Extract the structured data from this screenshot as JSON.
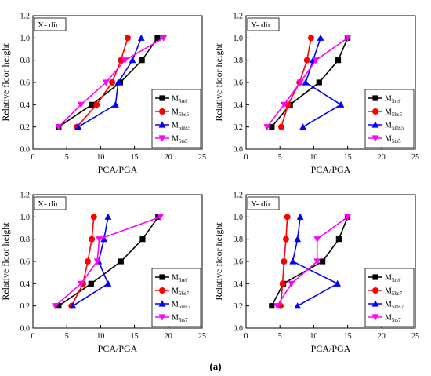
{
  "caption": "(a)",
  "chart_data": [
    {
      "type": "line",
      "direction_label": "X- dir",
      "xlabel": "PCA/PGA",
      "ylabel": "Relative floor height",
      "xlim": [
        0,
        25
      ],
      "ylim": [
        0,
        1.2
      ],
      "xticks": [
        "0",
        "5",
        "10",
        "15",
        "20",
        "25"
      ],
      "yticks": [
        "0.0",
        "0.2",
        "0.4",
        "0.6",
        "0.8",
        "1.0",
        "1.2"
      ],
      "legend_position": "bottom-right",
      "y": [
        0.2,
        0.4,
        0.6,
        0.8,
        1.0
      ],
      "series": [
        {
          "name": "M",
          "sub": "5ref",
          "color": "#000000",
          "marker": "square",
          "x": [
            3.8,
            8.7,
            12.9,
            16.1,
            18.4
          ]
        },
        {
          "name": "M",
          "sub": "5bs5",
          "color": "#ff0000",
          "marker": "circle",
          "x": [
            6.5,
            9.4,
            11.7,
            13.0,
            14.0
          ]
        },
        {
          "name": "M",
          "sub": "5ms5",
          "color": "#0000ff",
          "marker": "triangle-up",
          "x": [
            6.7,
            12.2,
            12.6,
            14.7,
            16.0
          ]
        },
        {
          "name": "M",
          "sub": "5ts5",
          "color": "#ff00ff",
          "marker": "triangle-down",
          "x": [
            3.8,
            7.1,
            10.8,
            13.6,
            19.3
          ]
        }
      ]
    },
    {
      "type": "line",
      "direction_label": "Y- dir",
      "xlabel": "PCA/PGA",
      "ylabel": "Relative floor height",
      "xlim": [
        0,
        25
      ],
      "ylim": [
        0,
        1.2
      ],
      "xticks": [
        "0",
        "5",
        "10",
        "15",
        "20",
        "25"
      ],
      "yticks": [
        "0.0",
        "0.2",
        "0.4",
        "0.6",
        "0.8",
        "1.0",
        "1.2"
      ],
      "legend_position": "bottom-right",
      "y": [
        0.2,
        0.4,
        0.6,
        0.8,
        1.0
      ],
      "series": [
        {
          "name": "M",
          "sub": "5ref",
          "color": "#000000",
          "marker": "square",
          "x": [
            3.8,
            6.5,
            10.8,
            13.6,
            15.0
          ]
        },
        {
          "name": "M",
          "sub": "5bs5",
          "color": "#ff0000",
          "marker": "circle",
          "x": [
            5.2,
            6.2,
            7.9,
            9.0,
            9.6
          ]
        },
        {
          "name": "M",
          "sub": "5ms5",
          "color": "#0000ff",
          "marker": "triangle-up",
          "x": [
            8.4,
            14.0,
            8.8,
            9.9,
            11.0
          ]
        },
        {
          "name": "M",
          "sub": "5ts5",
          "color": "#ff00ff",
          "marker": "triangle-down",
          "x": [
            3.1,
            5.6,
            8.0,
            10.3,
            15.0
          ]
        }
      ]
    },
    {
      "type": "line",
      "direction_label": "X- dir",
      "xlabel": "PCA/PGA",
      "ylabel": "Relative floor height",
      "xlim": [
        0,
        25
      ],
      "ylim": [
        0,
        1.2
      ],
      "xticks": [
        "0",
        "5",
        "10",
        "15",
        "20",
        "25"
      ],
      "yticks": [
        "0.0",
        "0.2",
        "0.4",
        "0.6",
        "0.8",
        "1.0",
        "1.2"
      ],
      "legend_position": "bottom-right",
      "y": [
        0.2,
        0.4,
        0.6,
        0.8,
        1.0
      ],
      "series": [
        {
          "name": "M",
          "sub": "5ref",
          "color": "#000000",
          "marker": "square",
          "x": [
            3.8,
            8.6,
            13.0,
            16.2,
            18.5
          ]
        },
        {
          "name": "M",
          "sub": "5bs7",
          "color": "#ff0000",
          "marker": "circle",
          "x": [
            5.7,
            7.4,
            8.1,
            8.7,
            9.0
          ]
        },
        {
          "name": "M",
          "sub": "5ms7",
          "color": "#0000ff",
          "marker": "triangle-up",
          "x": [
            5.9,
            11.1,
            9.7,
            10.5,
            11.1
          ]
        },
        {
          "name": "M",
          "sub": "5ts7",
          "color": "#ff00ff",
          "marker": "triangle-down",
          "x": [
            3.3,
            7.1,
            9.5,
            9.8,
            18.8
          ]
        }
      ]
    },
    {
      "type": "line",
      "direction_label": "Y- dir",
      "xlabel": "PCA/PGA",
      "ylabel": "Relative floor height",
      "xlim": [
        0,
        25
      ],
      "ylim": [
        0,
        1.2
      ],
      "xticks": [
        "0",
        "5",
        "10",
        "15",
        "20",
        "25"
      ],
      "yticks": [
        "0.0",
        "0.2",
        "0.4",
        "0.6",
        "0.8",
        "1.0",
        "1.2"
      ],
      "legend_position": "bottom-right",
      "y": [
        0.2,
        0.4,
        0.6,
        0.8,
        1.0
      ],
      "series": [
        {
          "name": "M",
          "sub": "5ref",
          "color": "#000000",
          "marker": "square",
          "x": [
            3.8,
            5.5,
            11.3,
            13.7,
            15.0
          ]
        },
        {
          "name": "M",
          "sub": "5bs7",
          "color": "#ff0000",
          "marker": "circle",
          "x": [
            5.1,
            5.4,
            5.6,
            5.9,
            6.1
          ]
        },
        {
          "name": "M",
          "sub": "5ms7",
          "color": "#0000ff",
          "marker": "triangle-up",
          "x": [
            7.6,
            13.5,
            6.9,
            7.6,
            8.0
          ]
        },
        {
          "name": "M",
          "sub": "5ts7",
          "color": "#ff00ff",
          "marker": "triangle-down",
          "x": [
            4.6,
            6.7,
            10.5,
            10.5,
            15.0
          ]
        }
      ]
    }
  ]
}
